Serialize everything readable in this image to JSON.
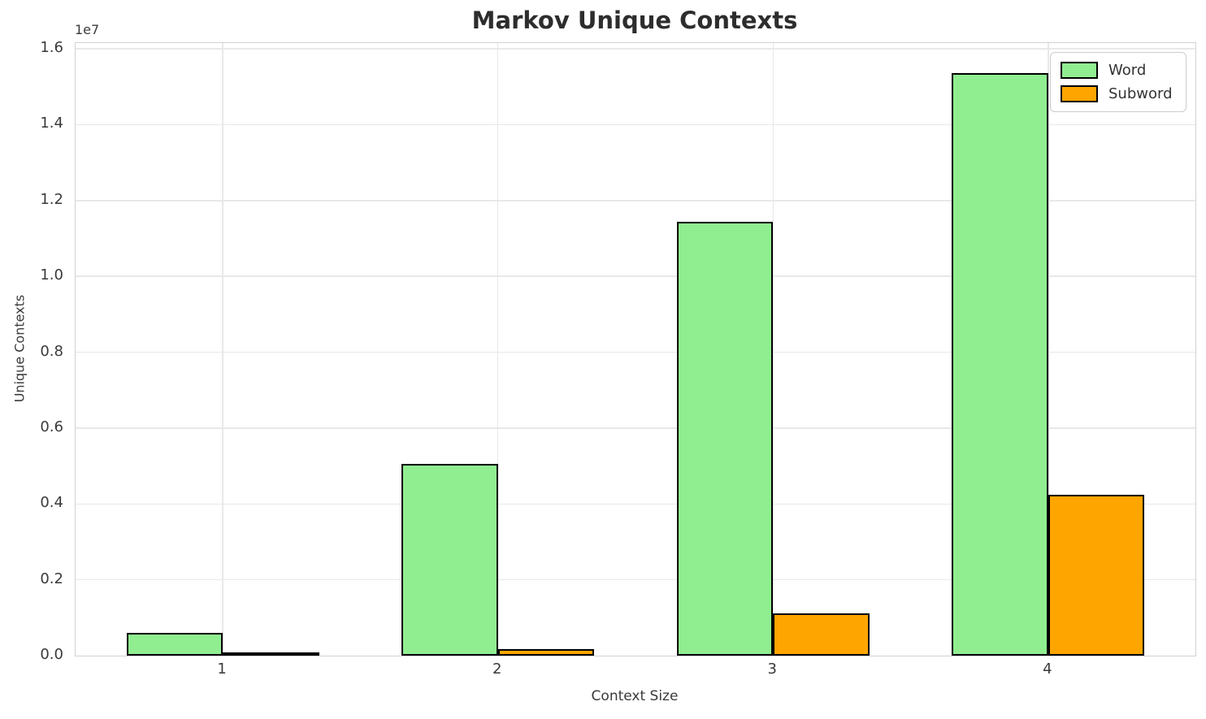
{
  "chart_data": {
    "type": "bar",
    "title": "Markov Unique Contexts",
    "xlabel": "Context Size",
    "ylabel": "Unique Contexts",
    "offset_label": "1e7",
    "categories": [
      "1",
      "2",
      "3",
      "4"
    ],
    "x_positions": [
      1,
      2,
      3,
      4
    ],
    "series": [
      {
        "name": "Word",
        "color": "#90EE90",
        "values": [
          600000,
          5050000,
          11440000,
          15350000
        ]
      },
      {
        "name": "Subword",
        "color": "#FFA500",
        "values": [
          30000,
          180000,
          1110000,
          4240000
        ]
      }
    ],
    "bar_edge_color": "#000000",
    "bar_width": 0.35,
    "xlim": [
      0.465,
      4.535
    ],
    "ylim": [
      0,
      16150000
    ],
    "yticks": [
      {
        "value": 0,
        "label": "0.0"
      },
      {
        "value": 2000000,
        "label": "0.2"
      },
      {
        "value": 4000000,
        "label": "0.4"
      },
      {
        "value": 6000000,
        "label": "0.6"
      },
      {
        "value": 8000000,
        "label": "0.8"
      },
      {
        "value": 10000000,
        "label": "1.0"
      },
      {
        "value": 12000000,
        "label": "1.2"
      },
      {
        "value": 14000000,
        "label": "1.4"
      },
      {
        "value": 16000000,
        "label": "1.6"
      }
    ],
    "grid": true,
    "legend_position": "upper right"
  }
}
